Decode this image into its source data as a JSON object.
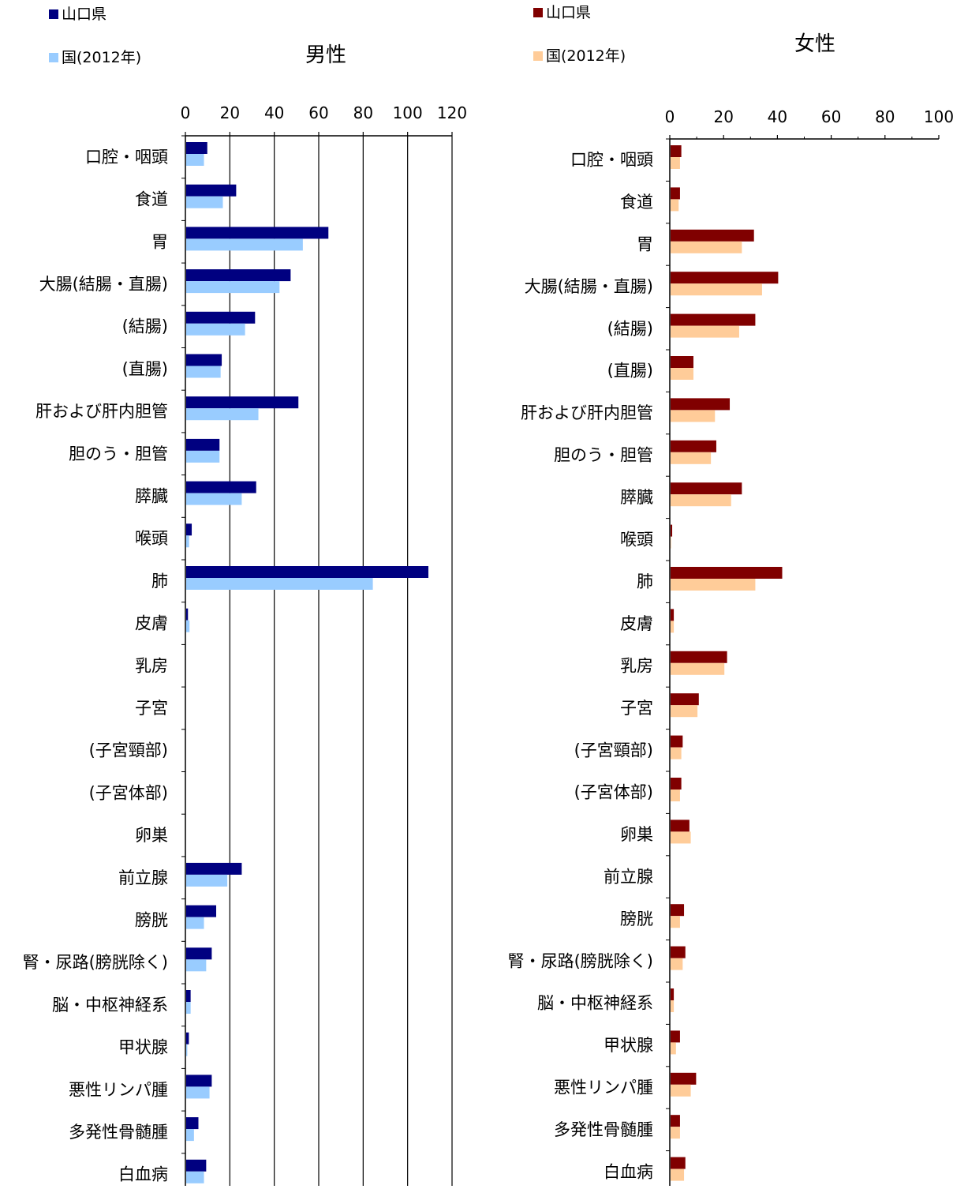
{
  "chart_data": [
    {
      "type": "bar",
      "orientation": "horizontal",
      "title": "男性",
      "xlim": [
        0,
        120
      ],
      "xticks": [
        "0",
        "20",
        "40",
        "60",
        "80",
        "100",
        "120"
      ],
      "grid": true,
      "legend_position": "top-left",
      "categories": [
        "口腔・咽頭",
        "食道",
        "胃",
        "大腸(結腸・直腸)",
        "(結腸)",
        "(直腸)",
        "肝および肝内胆管",
        "胆のう・胆管",
        "膵臓",
        "喉頭",
        "肺",
        "皮膚",
        "乳房",
        "子宮",
        "(子宮頸部)",
        "(子宮体部)",
        "卵巣",
        "前立腺",
        "膀胱",
        "腎・尿路(膀胱除く)",
        "脳・中枢神経系",
        "甲状腺",
        "悪性リンパ腫",
        "多発性骨髄腫",
        "白血病"
      ],
      "series": [
        {
          "name": "山口県",
          "color": "#000080",
          "values": [
            9.5,
            22.5,
            64,
            47,
            31,
            16,
            50.5,
            15,
            31.5,
            2.5,
            109,
            0.8,
            null,
            null,
            null,
            null,
            null,
            25,
            13.5,
            11.5,
            2,
            1.2,
            11.5,
            5.5,
            9
          ]
        },
        {
          "name": "国(2012年)",
          "color": "#99CCFF",
          "values": [
            8,
            16.5,
            52.5,
            42,
            26.5,
            15.5,
            32.5,
            15,
            25,
            1.3,
            84,
            1.5,
            null,
            null,
            null,
            null,
            null,
            18.5,
            8,
            9,
            2,
            0.5,
            10.5,
            3.5,
            8
          ]
        }
      ]
    },
    {
      "type": "bar",
      "orientation": "horizontal",
      "title": "女性",
      "xlim": [
        0,
        100
      ],
      "xticks": [
        "0",
        "20",
        "40",
        "60",
        "80",
        "100"
      ],
      "grid": false,
      "legend_position": "top-left",
      "categories": [
        "口腔・咽頭",
        "食道",
        "胃",
        "大腸(結腸・直腸)",
        "(結腸)",
        "(直腸)",
        "肝および肝内胆管",
        "胆のう・胆管",
        "膵臓",
        "喉頭",
        "肺",
        "皮膚",
        "乳房",
        "子宮",
        "(子宮頸部)",
        "(子宮体部)",
        "卵巣",
        "前立腺",
        "膀胱",
        "腎・尿路(膀胱除く)",
        "脳・中枢神経系",
        "甲状腺",
        "悪性リンパ腫",
        "多発性骨髄腫",
        "白血病"
      ],
      "series": [
        {
          "name": "山口県",
          "color": "#800000",
          "values": [
            4,
            3.5,
            31,
            40,
            31.5,
            8.5,
            22,
            17,
            26.5,
            0.6,
            41.5,
            1.2,
            21,
            10.5,
            4.5,
            4,
            7,
            null,
            5,
            5.5,
            1.2,
            3.5,
            9.5,
            3.5,
            5.5
          ]
        },
        {
          "name": "国(2012年)",
          "color": "#FFCC99",
          "values": [
            3.5,
            3,
            26.5,
            34,
            25.5,
            8.5,
            16.5,
            15,
            22.5,
            0.2,
            31.5,
            1.2,
            20,
            10,
            4,
            3.5,
            7.5,
            null,
            3.5,
            4.5,
            1.2,
            2,
            7.5,
            3.5,
            5
          ]
        }
      ]
    }
  ]
}
